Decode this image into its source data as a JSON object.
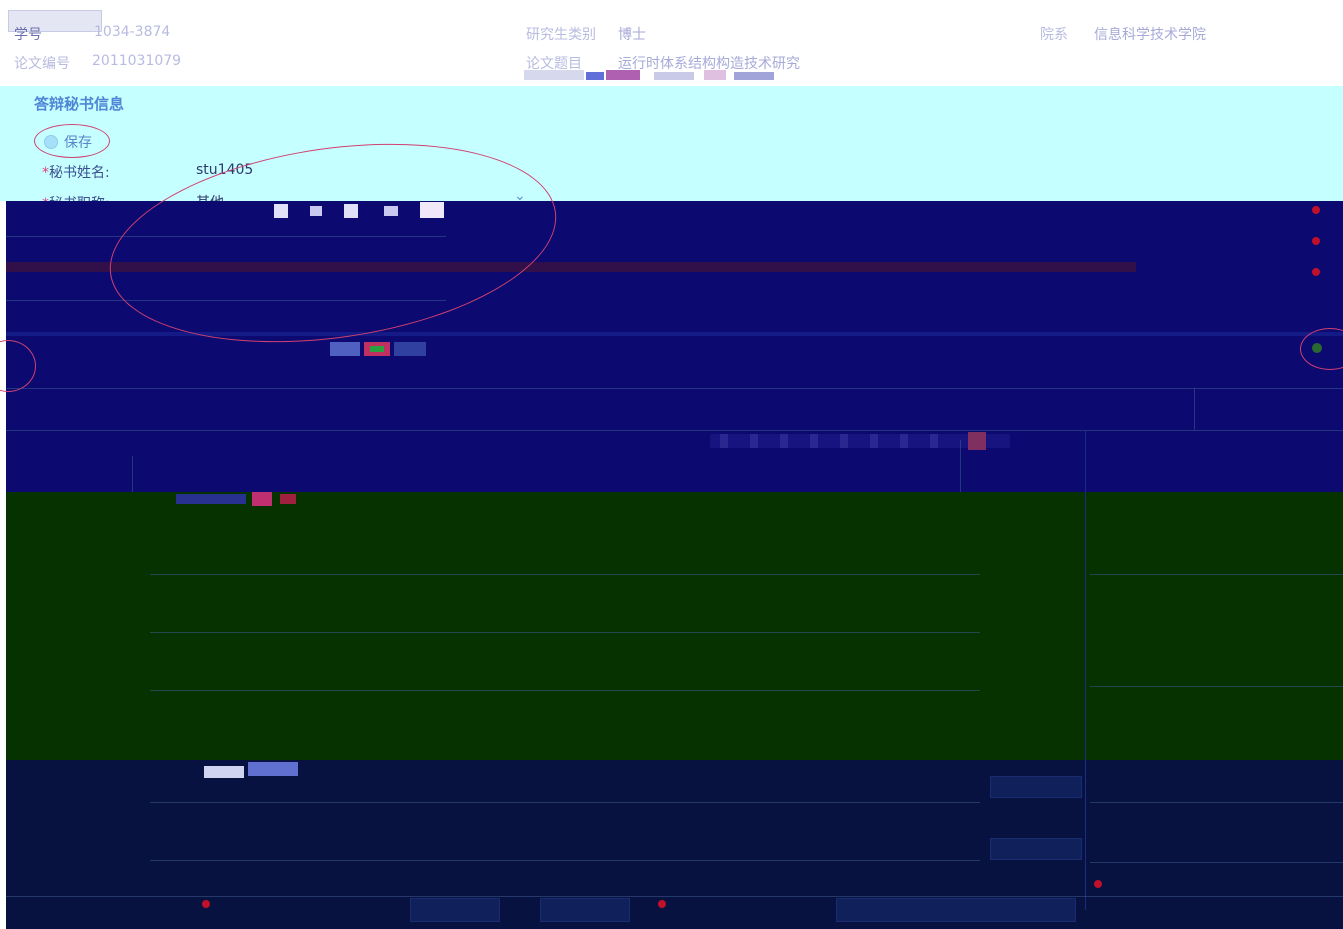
{
  "info": {
    "student_id_label": "学号",
    "student_id_value": "1034-3874",
    "thesis_no_label": "论文编号",
    "thesis_no_value": "2011031079",
    "grad_type_label": "研究生类别",
    "grad_type_value": "博士",
    "thesis_title_label": "论文题目",
    "thesis_title_value": "运行时体系结构构造技术研究",
    "dept_label": "院系",
    "dept_value": "信息科学技术学院"
  },
  "secretary": {
    "section_title": "答辩秘书信息",
    "save_label": "保存",
    "required_mark": "*",
    "name_label": "秘书姓名:",
    "name_value": "stu1405",
    "title_label": "秘书职称:",
    "title_value": "其他"
  },
  "colors": {
    "info_bg": "#ffffff",
    "section_bg": "#c6ffff",
    "dark_bg": "#0c0a70",
    "green_bg": "#063200",
    "bottom_bg": "#081240",
    "annotation": "#d04070"
  },
  "icons": {
    "save": "circle-save-icon",
    "dropdown": "chevron-down-icon"
  }
}
